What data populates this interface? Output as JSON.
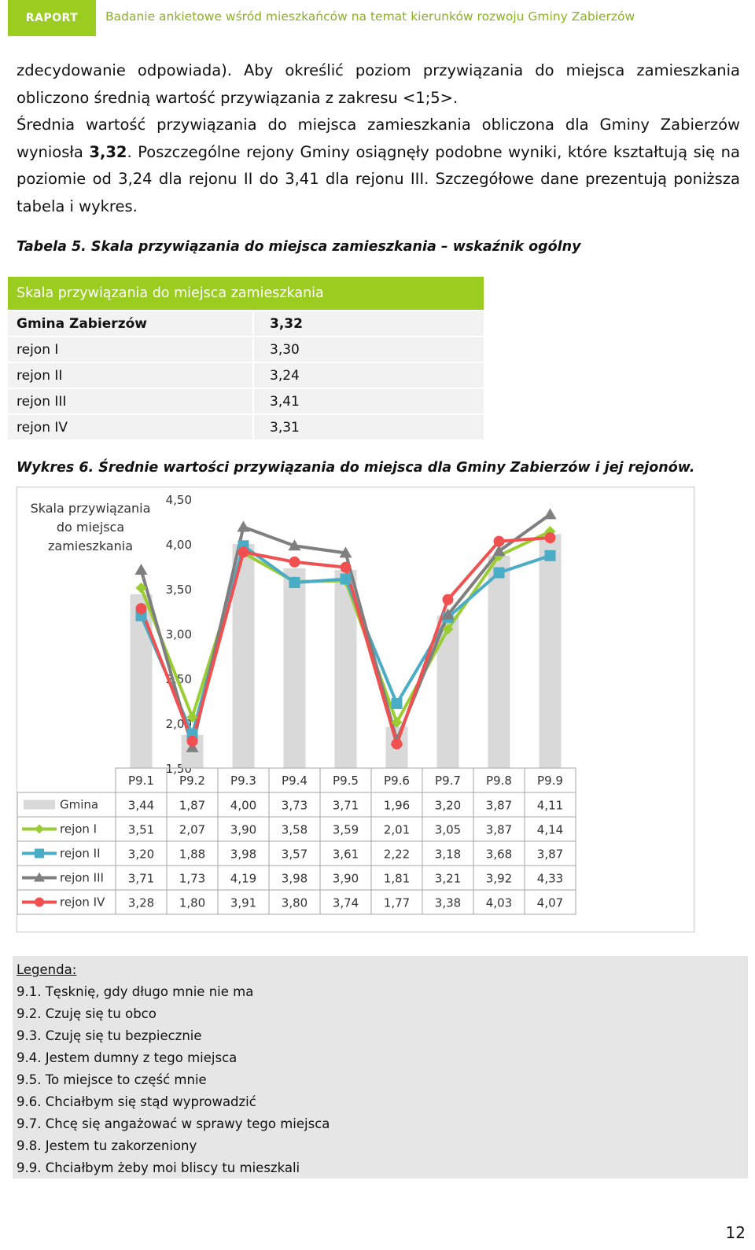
{
  "header": {
    "badge": "RAPORT",
    "title": "Badanie ankietowe wśród mieszkańców na temat kierunków rozwoju Gminy Zabierzów"
  },
  "body": {
    "line1": "zdecydowanie odpowiada). Aby określić poziom przywiązania do miejsca zamieszkania",
    "line2": "obliczono średnią wartość przywiązania z zakresu <1;5>.",
    "line3": "Średnia wartość przywiązania do miejsca zamieszkania obliczona dla Gminy Zabierzów",
    "line4_a": "wyniosła ",
    "line4_b": "3,32",
    "line4_c": ". Poszczególne rejony Gminy osiągnęły podobne wyniki, które kształtują się na",
    "line5": "poziomie od 3,24 dla rejonu II do 3,41 dla rejonu III. Szczegółowe dane prezentują poniższa",
    "line6": "tabela i wykres."
  },
  "table": {
    "caption": "Tabela 5. Skala przywiązania do miejsca zamieszkania – wskaźnik ogólny",
    "header": "Skala przywiązania do miejsca zamieszkania",
    "rows": [
      {
        "label": "Gmina Zabierzów",
        "value": "3,32"
      },
      {
        "label": "rejon I",
        "value": "3,30"
      },
      {
        "label": "rejon II",
        "value": "3,24"
      },
      {
        "label": "rejon III",
        "value": "3,41"
      },
      {
        "label": "rejon IV",
        "value": "3,31"
      }
    ]
  },
  "chart_caption": "Wykres 6. Średnie wartości przywiązania do miejsca dla Gminy Zabierzów i jej rejonów.",
  "chart_data": {
    "type": "line",
    "ylabel": "Skala przywiązania do miejsca zamieszkania",
    "ylabel_lines": [
      "Skala przywiązania",
      "do miejsca",
      "zamieszkania"
    ],
    "ylim": [
      1.5,
      4.5
    ],
    "yticks": [
      "4,50",
      "4,00",
      "3,50",
      "3,00",
      "2,50",
      "2,00",
      "1,50"
    ],
    "categories": [
      "P9.1",
      "P9.2",
      "P9.3",
      "P9.4",
      "P9.5",
      "P9.6",
      "P9.7",
      "P9.8",
      "P9.9"
    ],
    "series": [
      {
        "name": "Gmina",
        "kind": "bar",
        "color": "#d9d9d9",
        "values": [
          3.44,
          1.87,
          4.0,
          3.73,
          3.71,
          1.96,
          3.2,
          3.87,
          4.11
        ],
        "labels": [
          "3,44",
          "1,87",
          "4,00",
          "3,73",
          "3,71",
          "1,96",
          "3,20",
          "3,87",
          "4,11"
        ]
      },
      {
        "name": "rejon I",
        "kind": "line",
        "marker": "diamond",
        "color": "#9acd32",
        "values": [
          3.51,
          2.07,
          3.9,
          3.58,
          3.59,
          2.01,
          3.05,
          3.87,
          4.14
        ],
        "labels": [
          "3,51",
          "2,07",
          "3,90",
          "3,58",
          "3,59",
          "2,01",
          "3,05",
          "3,87",
          "4,14"
        ]
      },
      {
        "name": "rejon II",
        "kind": "line",
        "marker": "square",
        "color": "#4bacc6",
        "values": [
          3.2,
          1.88,
          3.98,
          3.57,
          3.61,
          2.22,
          3.18,
          3.68,
          3.87
        ],
        "labels": [
          "3,20",
          "1,88",
          "3,98",
          "3,57",
          "3,61",
          "2,22",
          "3,18",
          "3,68",
          "3,87"
        ]
      },
      {
        "name": "rejon III",
        "kind": "line",
        "marker": "triangle",
        "color": "#7f7f7f",
        "values": [
          3.71,
          1.73,
          4.19,
          3.98,
          3.9,
          1.81,
          3.21,
          3.92,
          4.33
        ],
        "labels": [
          "3,71",
          "1,73",
          "4,19",
          "3,98",
          "3,90",
          "1,81",
          "3,21",
          "3,92",
          "4,33"
        ]
      },
      {
        "name": "rejon IV",
        "kind": "line",
        "marker": "circle",
        "color": "#f05050",
        "values": [
          3.28,
          1.8,
          3.91,
          3.8,
          3.74,
          1.77,
          3.38,
          4.03,
          4.07
        ],
        "labels": [
          "3,28",
          "1,80",
          "3,91",
          "3,80",
          "3,74",
          "1,77",
          "3,38",
          "4,03",
          "4,07"
        ]
      }
    ],
    "grid": true,
    "legend": "data-table"
  },
  "legend": {
    "title": "Legenda:",
    "items": [
      "9.1. Tęsknię, gdy długo mnie nie ma",
      "9.2. Czuję się tu obco",
      "9.3. Czuję się tu bezpiecznie",
      "9.4. Jestem dumny z tego miejsca",
      "9.5. To miejsce to część mnie",
      "9.6. Chciałbym się stąd wyprowadzić",
      "9.7. Chcę się angażować w sprawy tego miejsca",
      "9.8. Jestem tu zakorzeniony",
      "9.9. Chciałbym żeby moi bliscy tu mieszkali"
    ]
  },
  "page_number": "12"
}
